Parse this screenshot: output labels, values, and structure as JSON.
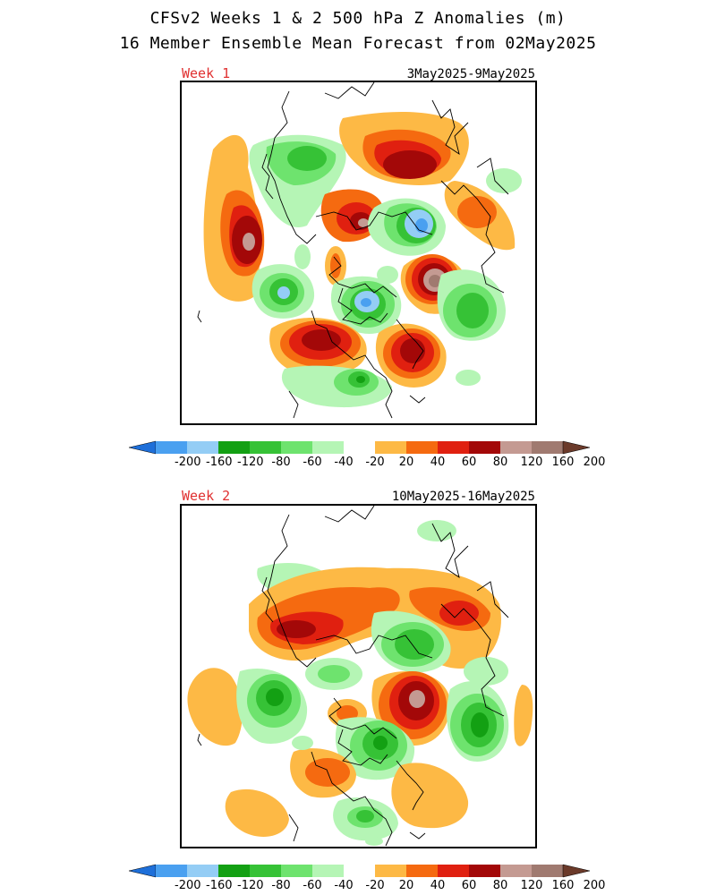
{
  "title": {
    "line1": "CFSv2 Weeks 1 & 2 500 hPa Z Anomalies (m)",
    "line2": "16 Member Ensemble Mean Forecast from 02May2025"
  },
  "panels": [
    {
      "label": "Week 1",
      "dates": "3May2025-9May2025"
    },
    {
      "label": "Week 2",
      "dates": "10May2025-16May2025"
    }
  ],
  "colorbar": {
    "ticks": [
      "-200",
      "-160",
      "-120",
      "-80",
      "-60",
      "-40",
      "-20",
      "20",
      "40",
      "60",
      "80",
      "120",
      "160",
      "200"
    ],
    "colors": [
      "#1e6fd9",
      "#4aa0f0",
      "#94cdf5",
      "#13a013",
      "#36c236",
      "#6ee36e",
      "#b5f5b5",
      "#ffffff",
      "#fdb945",
      "#f56a10",
      "#e02010",
      "#a30808",
      "#c49a92",
      "#a07a70",
      "#6b3a2a"
    ]
  }
}
